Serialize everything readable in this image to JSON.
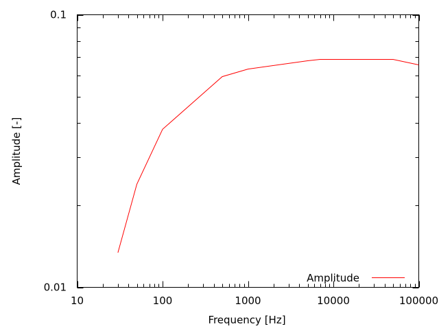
{
  "chart_data": {
    "type": "line",
    "title": "",
    "xlabel": "Frequency [Hz]",
    "ylabel": "Amplitude [-]",
    "xscale": "log",
    "yscale": "log",
    "xlim": [
      10,
      100000
    ],
    "ylim": [
      0.01,
      0.1
    ],
    "x_tick_labels": [
      "10",
      "100",
      "1000",
      "10000",
      "100000"
    ],
    "y_tick_labels": [
      "0.01",
      "0.1"
    ],
    "grid": false,
    "legend_position": "bottom-right",
    "series": [
      {
        "name": "Amplitude",
        "color": "#ff0000",
        "x": [
          30,
          50,
          100,
          500,
          1000,
          5000,
          7000,
          50000,
          100000
        ],
        "y": [
          0.0134,
          0.0239,
          0.038,
          0.0593,
          0.0632,
          0.0678,
          0.0686,
          0.0686,
          0.0655
        ]
      }
    ]
  }
}
